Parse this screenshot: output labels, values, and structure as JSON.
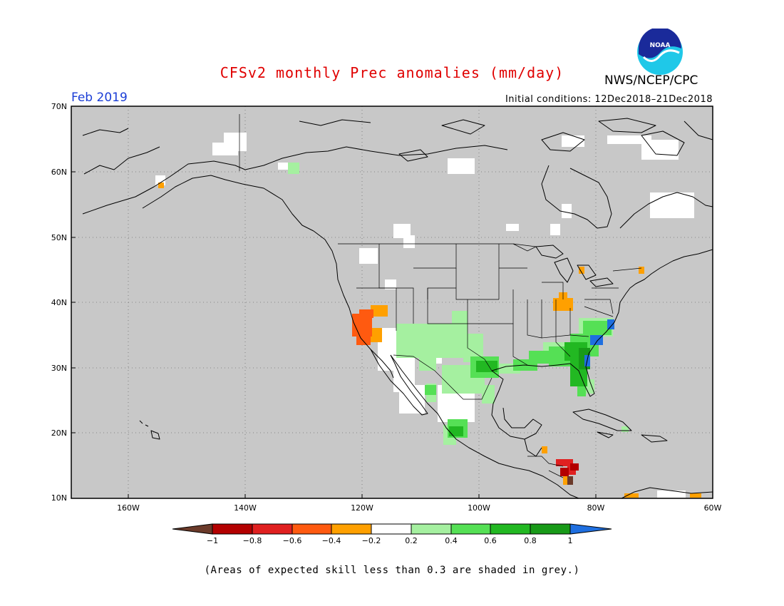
{
  "header": {
    "title": "CFSv2 monthly Prec anomalies (mm/day)",
    "org": "NWS/NCEP/CPC",
    "logo_text": "NOAA",
    "month": "Feb 2019",
    "initial_conditions": "Initial conditions: 12Dec2018–21Dec2018"
  },
  "axes": {
    "lat_labels": [
      "70N",
      "60N",
      "50N",
      "40N",
      "30N",
      "20N",
      "10N"
    ],
    "lon_labels": [
      "160W",
      "140W",
      "120W",
      "100W",
      "80W",
      "60W"
    ]
  },
  "colorbar": {
    "ticks": [
      "−1",
      "−0.8",
      "−0.6",
      "−0.4",
      "−0.2",
      "0.2",
      "0.4",
      "0.6",
      "0.8",
      "1"
    ],
    "colors": [
      "#6b3a2a",
      "#b30000",
      "#e02020",
      "#ff5a10",
      "#ffa000",
      "#ffffff",
      "#a5f0a0",
      "#55e055",
      "#22b822",
      "#189a18",
      "#1f6fe0"
    ]
  },
  "colors": {
    "grey": "#c8c8c8",
    "title": "#e00000",
    "month": "#1a3dd6"
  },
  "footer": {
    "note": "(Areas of expected skill less than 0.3 are shaded in grey.)"
  }
}
